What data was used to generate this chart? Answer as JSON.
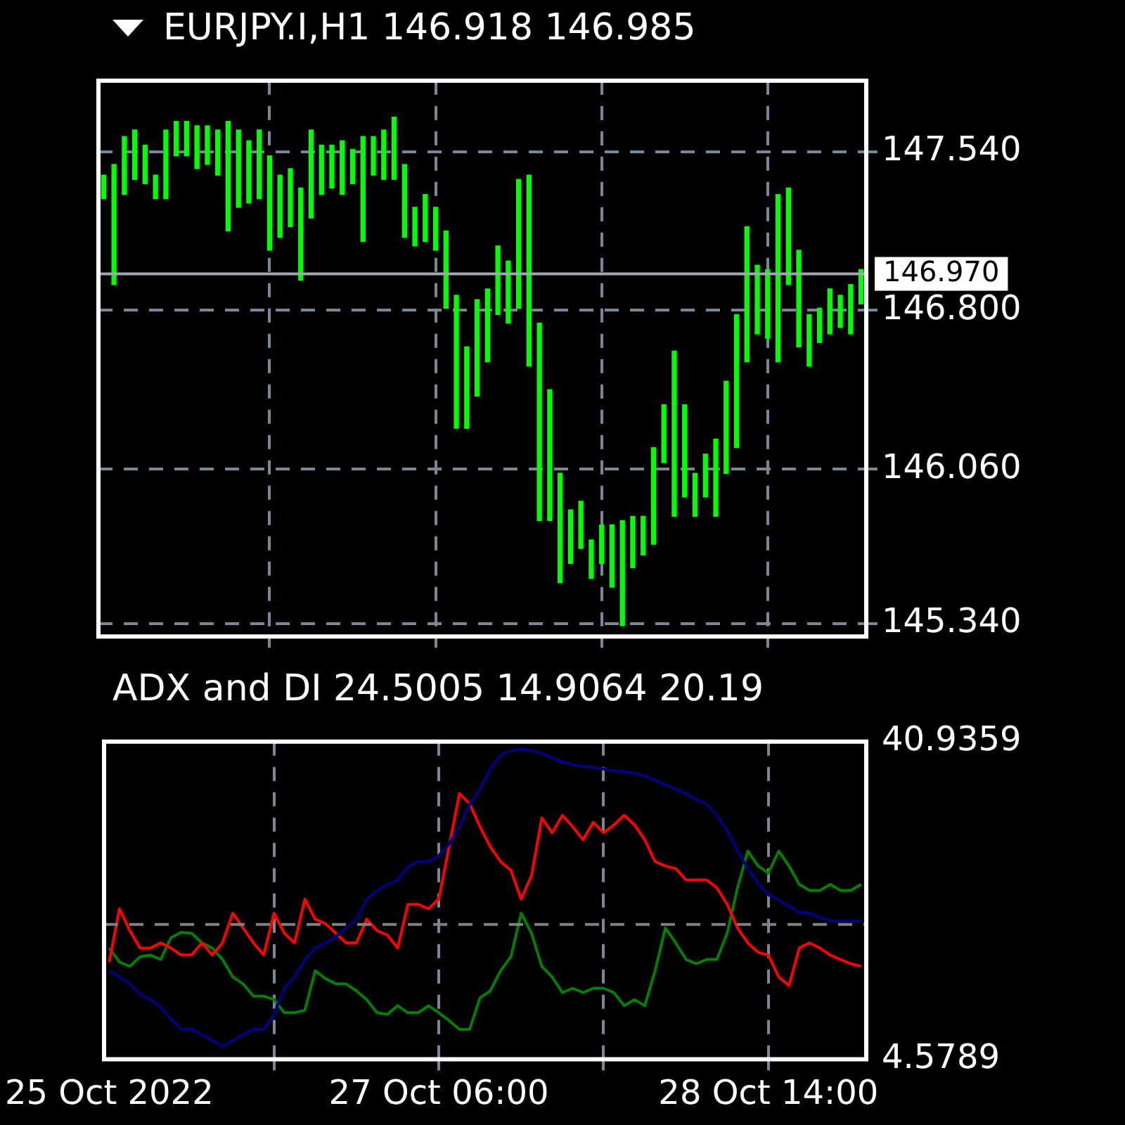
{
  "chart_data": [
    {
      "type": "bar",
      "title": "EURJPY.I,H1  146.918 146.985",
      "categories": [
        null,
        null,
        null,
        null,
        null,
        null,
        null,
        null,
        null,
        null,
        null,
        null,
        null,
        null,
        null,
        null,
        null,
        null,
        null,
        null,
        null,
        null,
        null,
        null,
        null,
        null,
        null,
        null,
        null,
        null,
        null,
        null,
        null,
        null,
        null,
        null,
        null,
        null,
        null,
        null,
        null,
        null,
        null,
        null,
        null,
        null,
        null,
        null,
        null,
        null,
        null,
        null,
        null,
        null,
        null,
        null,
        null,
        null,
        null,
        null,
        null,
        null,
        null,
        null,
        null,
        null,
        null,
        null,
        null,
        null,
        null,
        null,
        null,
        null
      ],
      "base": [
        147.32,
        146.92,
        147.34,
        147.41,
        147.39,
        147.32,
        147.32,
        147.52,
        147.52,
        147.46,
        147.48,
        147.43,
        147.17,
        147.28,
        147.3,
        147.32,
        147.08,
        147.14,
        147.19,
        146.94,
        147.23,
        147.34,
        147.37,
        147.34,
        147.39,
        147.12,
        147.43,
        147.41,
        147.41,
        147.14,
        147.1,
        147.12,
        147.08,
        146.81,
        146.25,
        146.25,
        146.4,
        146.56,
        146.78,
        146.74,
        146.81,
        146.54,
        145.82,
        145.82,
        145.53,
        145.62,
        145.69,
        145.55,
        145.62,
        145.51,
        145.33,
        145.6,
        145.66,
        145.71,
        146.09,
        145.84,
        145.93,
        145.84,
        145.93,
        145.84,
        146.04,
        146.16,
        146.56,
        146.69,
        146.67,
        146.56,
        146.92,
        146.63,
        146.54,
        146.65,
        146.69,
        146.72,
        146.69,
        146.83
      ],
      "values": [
        0.11,
        0.56,
        0.27,
        0.23,
        0.18,
        0.11,
        0.32,
        0.16,
        0.16,
        0.2,
        0.18,
        0.21,
        0.51,
        0.36,
        0.29,
        0.32,
        0.44,
        0.29,
        0.27,
        0.43,
        0.41,
        0.23,
        0.2,
        0.25,
        0.16,
        0.49,
        0.18,
        0.23,
        0.29,
        0.34,
        0.18,
        0.22,
        0.2,
        0.36,
        0.62,
        0.38,
        0.45,
        0.34,
        0.32,
        0.29,
        0.6,
        0.89,
        0.92,
        0.61,
        0.51,
        0.25,
        0.22,
        0.18,
        0.18,
        0.29,
        0.49,
        0.24,
        0.18,
        0.45,
        0.27,
        0.77,
        0.43,
        0.2,
        0.2,
        0.36,
        0.43,
        0.62,
        0.63,
        0.32,
        0.32,
        0.78,
        0.45,
        0.45,
        0.24,
        0.16,
        0.21,
        0.15,
        0.23,
        0.16
      ],
      "color": "#00ff00",
      "ylim": [
        145.28,
        147.87
      ],
      "yticks": [
        {
          "value": 147.54,
          "label": "147.540"
        },
        {
          "value": 146.8,
          "label": "146.800"
        },
        {
          "value": 146.06,
          "label": "146.060"
        },
        {
          "value": 145.34,
          "label": "145.340"
        }
      ],
      "ref_lines": [
        {
          "axis": "y",
          "value": 146.97,
          "label": "146.970",
          "color": "#a0a8b0",
          "line_style": "solid"
        }
      ],
      "grid": true,
      "tick_labels": "y"
    },
    {
      "type": "line",
      "title": "ADX and DI 24.5005 14.9064 20.19",
      "categories": [
        "25 Oct 2022",
        null,
        null,
        null,
        null,
        null,
        null,
        null,
        null,
        null,
        null,
        null,
        null,
        null,
        null,
        null,
        null,
        null,
        null,
        null,
        null,
        null,
        null,
        null,
        null,
        null,
        null,
        null,
        null,
        null,
        null,
        null,
        "27 Oct 06:00",
        null,
        null,
        null,
        null,
        null,
        null,
        null,
        null,
        null,
        null,
        null,
        null,
        null,
        null,
        null,
        null,
        null,
        null,
        null,
        null,
        null,
        null,
        null,
        null,
        null,
        null,
        null,
        null,
        null,
        null,
        null,
        "28 Oct 14:00",
        null,
        null,
        null,
        null,
        null,
        null,
        null,
        null,
        null
      ],
      "series": [
        {
          "color": "#000080",
          "values": [
            14.7,
            14.0,
            13.2,
            12.0,
            11.4,
            10.5,
            9.2,
            8.0,
            8.0,
            7.4,
            6.7,
            6.1,
            6.7,
            7.4,
            8.0,
            8.0,
            9.7,
            12.7,
            14.0,
            16.0,
            17.3,
            17.9,
            18.6,
            19.6,
            20.6,
            22.9,
            23.9,
            24.6,
            25.1,
            26.6,
            27.2,
            27.2,
            27.9,
            29.2,
            31.2,
            33.8,
            35.5,
            37.8,
            39.4,
            39.9,
            40.1,
            39.9,
            39.6,
            39.1,
            38.6,
            38.3,
            38.1,
            38.0,
            37.8,
            37.6,
            37.5,
            37.3,
            37.0,
            36.5,
            36.0,
            35.5,
            35.0,
            34.3,
            33.8,
            32.5,
            30.7,
            28.4,
            26.4,
            24.7,
            23.4,
            22.8,
            22.1,
            21.4,
            21.3,
            20.8,
            20.4,
            20.4,
            20.4,
            20.4
          ]
        },
        {
          "color": "#ff0000",
          "values": [
            15.7,
            21.8,
            19.3,
            17.3,
            17.3,
            17.9,
            17.3,
            16.5,
            16.5,
            17.9,
            16.5,
            17.9,
            21.3,
            19.6,
            17.9,
            16.5,
            21.3,
            19.0,
            17.9,
            22.9,
            20.6,
            20.1,
            19.0,
            17.9,
            17.9,
            20.6,
            19.3,
            18.8,
            17.3,
            22.3,
            22.3,
            21.8,
            22.9,
            28.9,
            35.0,
            33.8,
            31.2,
            28.9,
            27.2,
            26.2,
            22.9,
            25.6,
            32.2,
            30.5,
            32.5,
            31.2,
            29.7,
            31.7,
            30.5,
            31.4,
            32.5,
            31.4,
            29.7,
            27.2,
            26.7,
            26.4,
            25.1,
            25.1,
            25.1,
            24.2,
            22.3,
            19.6,
            17.9,
            16.8,
            16.5,
            14.0,
            13.0,
            17.3,
            17.9,
            17.3,
            16.5,
            16.0,
            15.5,
            15.2
          ]
        },
        {
          "color": "#008000",
          "values": [
            17.3,
            15.7,
            15.2,
            16.3,
            16.5,
            16.0,
            18.5,
            19.1,
            19.0,
            17.9,
            17.3,
            16.0,
            14.0,
            13.2,
            11.8,
            11.8,
            11.4,
            9.9,
            9.9,
            10.2,
            14.7,
            13.8,
            13.2,
            13.2,
            12.4,
            11.4,
            9.9,
            9.7,
            10.7,
            9.9,
            9.9,
            10.7,
            9.9,
            9.0,
            8.0,
            8.0,
            11.6,
            12.4,
            14.7,
            16.3,
            21.3,
            19.0,
            15.2,
            14.0,
            12.2,
            12.7,
            12.2,
            12.7,
            12.7,
            12.2,
            10.7,
            11.4,
            10.7,
            14.7,
            19.6,
            17.9,
            16.0,
            15.5,
            16.0,
            16.0,
            19.0,
            24.2,
            28.4,
            26.7,
            25.9,
            28.4,
            26.7,
            24.6,
            23.9,
            23.9,
            24.6,
            23.9,
            23.9,
            24.6
          ]
        }
      ],
      "ylim": [
        4.5789,
        40.9359
      ],
      "yticks": [
        40.9359,
        4.5789
      ],
      "ref_lines": [
        {
          "axis": "y",
          "value": 20,
          "color": "#808080",
          "line_style": "dashed"
        }
      ],
      "marker": "none",
      "line_style": "solid",
      "grid": "x"
    }
  ]
}
